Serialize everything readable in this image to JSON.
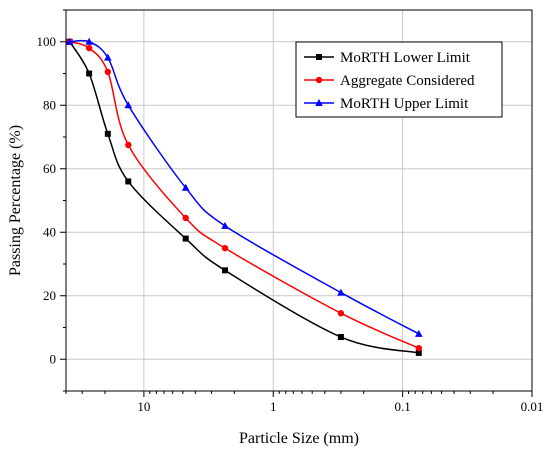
{
  "chart_data": {
    "type": "line",
    "x_scale": "log",
    "x_reversed": true,
    "xlabel": "Particle Size (mm)",
    "ylabel": "Passing Percentage (%)",
    "xlim": [
      40,
      0.01
    ],
    "ylim": [
      -10,
      110
    ],
    "x_tick_values": [
      10,
      1,
      0.1,
      0.01
    ],
    "x_tick_labels": [
      "10",
      "1",
      "0.1",
      "0.01"
    ],
    "y_tick_values": [
      0,
      20,
      40,
      60,
      80,
      100
    ],
    "y_tick_labels": [
      "0",
      "20",
      "40",
      "60",
      "80",
      "100"
    ],
    "grid": true,
    "legend_position": "top-right",
    "series": [
      {
        "name": "MoRTH Lower Limit",
        "color": "#000000",
        "marker": "square",
        "x": [
          37.5,
          26.5,
          19,
          13.2,
          4.75,
          2.36,
          0.3,
          0.075
        ],
        "y": [
          100,
          90,
          71,
          56,
          38,
          28,
          7,
          2
        ]
      },
      {
        "name": "Aggregate Considered",
        "color": "#ff0000",
        "marker": "circle",
        "x": [
          37.5,
          26.5,
          19,
          13.2,
          4.75,
          2.36,
          0.3,
          0.075
        ],
        "y": [
          100,
          98,
          90.5,
          67.5,
          44.5,
          35,
          14.5,
          3.5
        ]
      },
      {
        "name": "MoRTH Upper Limit",
        "color": "#0000ff",
        "marker": "triangle",
        "x": [
          37.5,
          26.5,
          19,
          13.2,
          4.75,
          2.36,
          0.3,
          0.075
        ],
        "y": [
          100,
          100,
          95,
          80,
          54,
          42,
          21,
          8
        ]
      }
    ]
  }
}
